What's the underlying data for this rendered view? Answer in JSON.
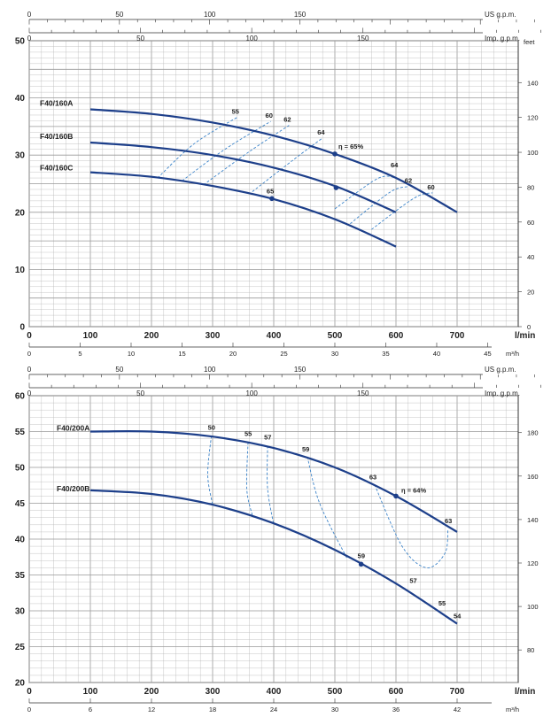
{
  "chart_data": [
    {
      "type": "line",
      "x_unit_label": "l/min",
      "left_unit_label": "",
      "right_unit_label": "feet",
      "top_scales": [
        {
          "label": "US g.p.m.",
          "ticks": [
            "0",
            "50",
            "100",
            "150"
          ]
        },
        {
          "label": "Imp. g.p.m.",
          "ticks": [
            "0",
            "50",
            "100",
            "150"
          ]
        }
      ],
      "xlim": [
        0,
        800
      ],
      "x_ticks": [
        "0",
        "100",
        "200",
        "300",
        "400",
        "500",
        "600",
        "700"
      ],
      "ylim": [
        0,
        50
      ],
      "y_ticks": [
        "0",
        "10",
        "20",
        "30",
        "40",
        "50"
      ],
      "right_ticks": [
        "0",
        "20",
        "40",
        "60",
        "80",
        "100",
        "120",
        "140"
      ],
      "bottom_scale": {
        "label": "m³/h",
        "ticks": [
          "0",
          "5",
          "10",
          "15",
          "20",
          "25",
          "30",
          "35",
          "40",
          "45"
        ]
      },
      "series": [
        {
          "name": "F40/160A",
          "points": [
            [
              100,
              38
            ],
            [
              200,
              37.2
            ],
            [
              300,
              35.7
            ],
            [
              400,
              33.4
            ],
            [
              500,
              30.2
            ],
            [
              600,
              26
            ],
            [
              700,
              20
            ]
          ]
        },
        {
          "name": "F40/160B",
          "points": [
            [
              100,
              32.2
            ],
            [
              200,
              31.4
            ],
            [
              300,
              30
            ],
            [
              400,
              27.8
            ],
            [
              500,
              24.6
            ],
            [
              600,
              20
            ]
          ]
        },
        {
          "name": "F40/160C",
          "points": [
            [
              100,
              27
            ],
            [
              200,
              26.2
            ],
            [
              300,
              24.6
            ],
            [
              400,
              22.3
            ],
            [
              500,
              18.8
            ],
            [
              600,
              14
            ]
          ]
        }
      ],
      "efficiency_labels": [
        "55",
        "60",
        "62",
        "64",
        "η = 65%",
        "64",
        "62",
        "60",
        "65"
      ],
      "efficiency_curves": [
        {
          "label": "55",
          "points": [
            [
              210,
              26
            ],
            [
              270,
              32
            ],
            [
              340,
              36.6
            ]
          ]
        },
        {
          "label": "60",
          "points": [
            [
              250,
              25.5
            ],
            [
              320,
              31
            ],
            [
              395,
              35.9
            ]
          ]
        },
        {
          "label": "62",
          "points": [
            [
              285,
              24.8
            ],
            [
              360,
              30.6
            ],
            [
              425,
              35.2
            ]
          ]
        },
        {
          "label": "64",
          "points": [
            [
              365,
              23.6
            ],
            [
              430,
              29
            ],
            [
              480,
              33
            ]
          ]
        },
        {
          "label": "64",
          "points": [
            [
              500,
              20.6
            ],
            [
              570,
              25.9
            ],
            [
              600,
              26
            ]
          ]
        },
        {
          "label": "62",
          "points": [
            [
              525,
              18
            ],
            [
              590,
              23.5
            ],
            [
              620,
              24.5
            ]
          ]
        },
        {
          "label": "60",
          "points": [
            [
              560,
              17
            ],
            [
              630,
              22.5
            ],
            [
              660,
              23.4
            ]
          ]
        }
      ],
      "bep_points": [
        [
          500,
          30.2
        ],
        [
          502,
          24.3
        ],
        [
          397,
          22.4
        ]
      ]
    },
    {
      "type": "line",
      "x_unit_label": "l/min",
      "left_unit_label": "",
      "right_unit_label": "",
      "top_scales": [
        {
          "label": "US g.p.m.",
          "ticks": [
            "0",
            "50",
            "100",
            "150"
          ]
        },
        {
          "label": "Imp. g.p.m.",
          "ticks": [
            "0",
            "50",
            "100",
            "150"
          ]
        }
      ],
      "xlim": [
        0,
        800
      ],
      "x_ticks": [
        "0",
        "100",
        "200",
        "300",
        "400",
        "500",
        "600",
        "700"
      ],
      "ylim": [
        20,
        60
      ],
      "y_ticks": [
        "20",
        "25",
        "30",
        "35",
        "40",
        "45",
        "50",
        "55",
        "60"
      ],
      "right_ticks": [
        "80",
        "100",
        "120",
        "140",
        "160",
        "180"
      ],
      "bottom_scale": {
        "label": "m³/h",
        "ticks": [
          "0",
          "6",
          "12",
          "18",
          "24",
          "30",
          "36",
          "42"
        ]
      },
      "series": [
        {
          "name": "F40/200A",
          "points": [
            [
              100,
              55
            ],
            [
              200,
              55
            ],
            [
              300,
              54.3
            ],
            [
              400,
              52.7
            ],
            [
              500,
              50
            ],
            [
              600,
              46
            ],
            [
              700,
              41
            ]
          ]
        },
        {
          "name": "F40/200B",
          "points": [
            [
              100,
              46.8
            ],
            [
              200,
              46.3
            ],
            [
              300,
              44.8
            ],
            [
              400,
              42.2
            ],
            [
              500,
              38.5
            ],
            [
              600,
              33.8
            ],
            [
              700,
              28.2
            ]
          ]
        }
      ],
      "efficiency_labels": [
        "50",
        "55",
        "57",
        "59",
        "63",
        "η = 64%",
        "63",
        "59",
        "57",
        "55",
        "54"
      ],
      "efficiency_curves": [
        {
          "label": "50",
          "points": [
            [
              298,
              54.4
            ],
            [
              292,
              49
            ],
            [
              300,
              44.8
            ]
          ]
        },
        {
          "label": "55",
          "points": [
            [
              358,
              53.5
            ],
            [
              356,
              47
            ],
            [
              365,
              43.3
            ]
          ]
        },
        {
          "label": "57",
          "points": [
            [
              390,
              53
            ],
            [
              390,
              47
            ],
            [
              400,
              42
            ]
          ]
        },
        {
          "label": "59",
          "points": [
            [
              455,
              51.5
            ],
            [
              475,
              45
            ],
            [
              520,
              37.3
            ]
          ]
        },
        {
          "label": "63",
          "points": [
            [
              565,
              47.6
            ],
            [
              610,
              39
            ],
            [
              650,
              36
            ],
            [
              680,
              38
            ],
            [
              685,
              41.2
            ]
          ]
        }
      ],
      "bep_points": [
        [
          600,
          46
        ],
        [
          543,
          36.5
        ]
      ]
    }
  ]
}
